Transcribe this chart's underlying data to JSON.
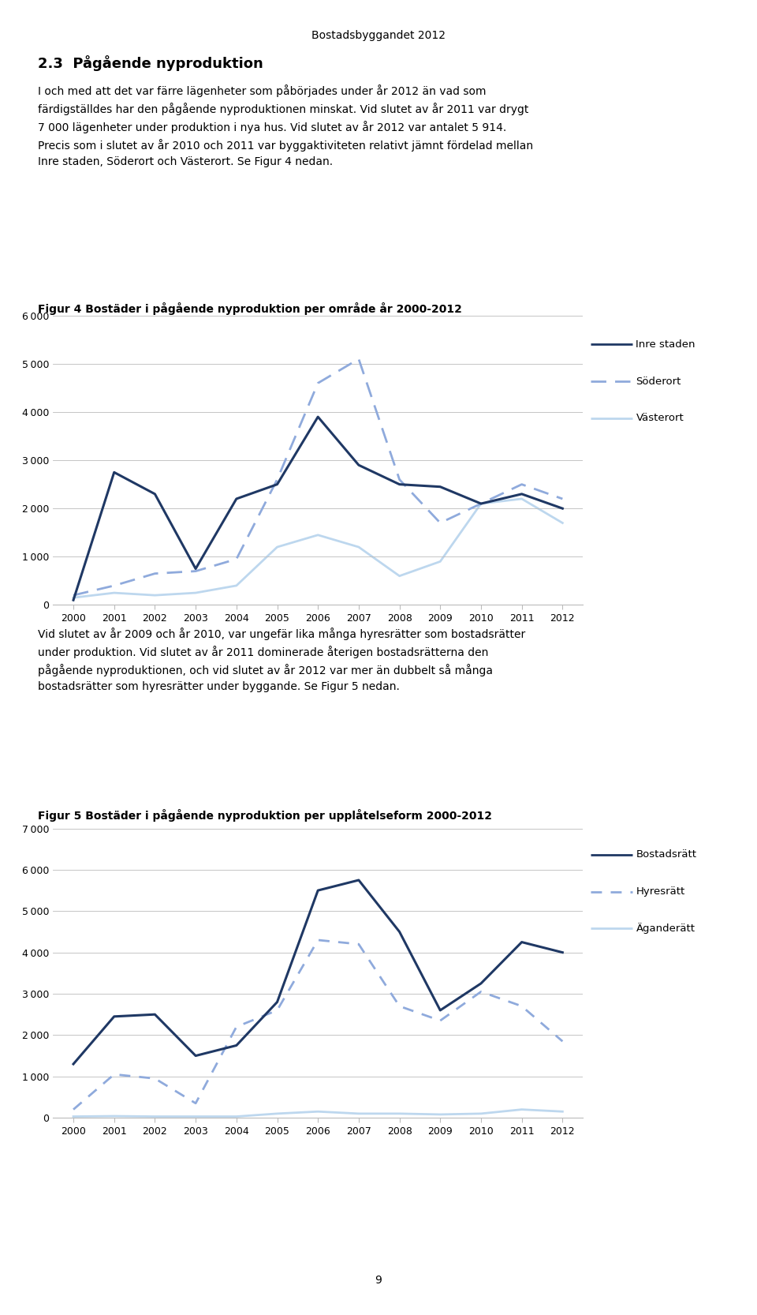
{
  "page_title": "Bostadsbyggandet 2012",
  "section_title": "2.3  Pågående nyproduktion",
  "section_text_lines": [
    "I och med att det var färre lägenheter som påbörjades under år 2012 än vad som",
    "färdigställdes har den pågående nyproduktionen minskat. Vid slutet av år 2011 var drygt",
    "7 000 lägenheter under produktion i nya hus. Vid slutet av år 2012 var antalet 5 914.",
    "Precis som i slutet av år 2010 och 2011 var byggaktiviteten relativt jämnt fördelad mellan",
    "Inre staden, Söderort och Västerort. Se Figur 4 nedan."
  ],
  "fig4_title": "Figur 4 Bostäder i pågående nyproduktion per område år 2000-2012",
  "fig4_text_lines": [
    "Vid slutet av år 2009 och år 2010, var ungefär lika många hyresrätter som bostadsrätter",
    "under produktion. Vid slutet av år 2011 dominerade återigen bostadsrätterna den",
    "pågående nyproduktionen, och vid slutet av år 2012 var mer än dubbelt så många",
    "bostadsrätter som hyresrätter under byggande. Se Figur 5 nedan."
  ],
  "fig5_title": "Figur 5 Bostäder i pågående nyproduktion per upplåtelseform 2000-2012",
  "years": [
    2000,
    2001,
    2002,
    2003,
    2004,
    2005,
    2006,
    2007,
    2008,
    2009,
    2010,
    2011,
    2012
  ],
  "fig4": {
    "inre_staden": [
      100,
      2750,
      2300,
      750,
      2200,
      2500,
      3900,
      2900,
      2500,
      2450,
      2100,
      2300,
      2000
    ],
    "soderort": [
      200,
      400,
      650,
      700,
      950,
      2600,
      4600,
      5100,
      2600,
      1700,
      2100,
      2500,
      2200
    ],
    "vasterort": [
      150,
      250,
      200,
      250,
      400,
      1200,
      1450,
      1200,
      600,
      900,
      2100,
      2200,
      1700
    ],
    "inre_color": "#1F3864",
    "soderort_color": "#8FAADC",
    "vasterort_color": "#BDD7EE",
    "ylim": [
      0,
      6000
    ],
    "yticks": [
      0,
      1000,
      2000,
      3000,
      4000,
      5000,
      6000
    ],
    "legend": [
      "Inre staden",
      "Söderort",
      "Västerort"
    ]
  },
  "fig5": {
    "bostadsratt": [
      1300,
      2450,
      2500,
      1500,
      1750,
      2800,
      5500,
      5750,
      4500,
      2600,
      3250,
      4250,
      4000
    ],
    "hyresratt": [
      200,
      1050,
      950,
      350,
      2200,
      2600,
      4300,
      4200,
      2700,
      2350,
      3050,
      2700,
      1850
    ],
    "aganderatt": [
      30,
      40,
      30,
      30,
      30,
      100,
      150,
      100,
      100,
      80,
      100,
      200,
      150
    ],
    "bostadsratt_color": "#1F3864",
    "hyresratt_color": "#8FAADC",
    "aganderatt_color": "#BDD7EE",
    "ylim": [
      0,
      7000
    ],
    "yticks": [
      0,
      1000,
      2000,
      3000,
      4000,
      5000,
      6000,
      7000
    ],
    "legend": [
      "Bostadsrätt",
      "Hyresrätt",
      "Äganderätt"
    ]
  },
  "background_color": "#FFFFFF",
  "text_color": "#000000",
  "grid_color": "#BBBBBB",
  "page_number": "9"
}
